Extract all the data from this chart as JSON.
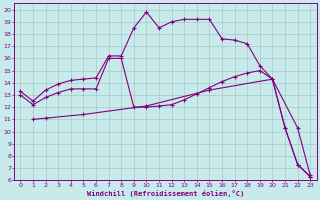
{
  "xlabel": "Windchill (Refroidissement éolien,°C)",
  "bg_color": "#c8eaea",
  "grid_color": "#9fbfbf",
  "line_color": "#800080",
  "xlim": [
    -0.5,
    23.5
  ],
  "ylim": [
    6,
    20.5
  ],
  "xticks": [
    0,
    1,
    2,
    3,
    4,
    5,
    6,
    7,
    8,
    9,
    10,
    11,
    12,
    13,
    14,
    15,
    16,
    17,
    18,
    19,
    20,
    21,
    22,
    23
  ],
  "yticks": [
    6,
    7,
    8,
    9,
    10,
    11,
    12,
    13,
    14,
    15,
    16,
    17,
    18,
    19,
    20
  ],
  "line1_x": [
    0,
    1,
    2,
    3,
    4,
    5,
    6,
    7,
    8,
    9,
    10,
    11,
    12,
    13,
    14,
    15,
    16,
    17,
    18,
    19,
    20,
    21,
    22,
    23
  ],
  "line1_y": [
    13.3,
    12.5,
    13.4,
    13.9,
    14.2,
    14.3,
    14.4,
    16.2,
    16.2,
    18.5,
    19.8,
    18.5,
    19.0,
    19.2,
    19.2,
    19.2,
    17.6,
    17.5,
    17.2,
    15.4,
    14.3,
    10.3,
    7.3,
    6.3
  ],
  "line2_x": [
    0,
    1,
    2,
    3,
    4,
    5,
    6,
    7,
    8,
    9,
    10,
    11,
    12,
    13,
    14,
    15,
    16,
    17,
    18,
    19,
    20,
    21,
    22,
    23
  ],
  "line2_y": [
    13.0,
    12.2,
    12.8,
    13.2,
    13.5,
    13.5,
    13.5,
    16.0,
    16.0,
    12.0,
    12.0,
    12.1,
    12.2,
    12.6,
    13.1,
    13.6,
    14.1,
    14.5,
    14.8,
    15.0,
    14.3,
    10.3,
    7.3,
    6.3
  ],
  "line3_x": [
    1,
    2,
    5,
    10,
    15,
    20,
    22,
    23
  ],
  "line3_y": [
    11.0,
    11.1,
    11.4,
    12.1,
    13.4,
    14.3,
    10.3,
    6.4
  ],
  "markersize": 2.5
}
